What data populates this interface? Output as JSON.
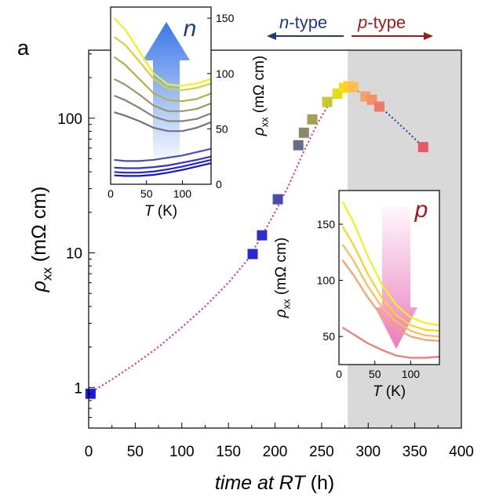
{
  "panel_label": "a",
  "type_labels": {
    "n_prefix": "n",
    "n_suffix": "-type",
    "p_prefix": "p",
    "p_suffix": "-type",
    "n_color": "#1f3d7a",
    "p_color": "#a01c1c"
  },
  "chart_data": [
    {
      "id": "main",
      "type": "scatter",
      "y_scale": "log",
      "xlabel_italic": "time at RT",
      "xlabel_unit": " (h)",
      "ylabel_symbol": "ρ",
      "ylabel_subscript": "xx",
      "ylabel_unit": " (mΩ cm)",
      "xlim": [
        0,
        400
      ],
      "ylim": [
        0.5,
        320
      ],
      "x_ticks": [
        0,
        50,
        100,
        150,
        200,
        250,
        300,
        350,
        400
      ],
      "y_ticks": [
        1,
        10,
        100
      ],
      "shaded_region": {
        "x_start": 278,
        "x_end": 400,
        "color": "#d9d9d9"
      },
      "points": [
        {
          "x": 2,
          "y": 0.9,
          "color": "#1a1adc"
        },
        {
          "x": 176,
          "y": 9.8,
          "color": "#2828d0"
        },
        {
          "x": 186,
          "y": 13.5,
          "color": "#3030c8"
        },
        {
          "x": 203,
          "y": 25,
          "color": "#4a4ab4"
        },
        {
          "x": 225,
          "y": 63,
          "color": "#6a6a8a"
        },
        {
          "x": 231,
          "y": 78,
          "color": "#8a8a6a"
        },
        {
          "x": 240,
          "y": 98,
          "color": "#a0a050"
        },
        {
          "x": 256,
          "y": 132,
          "color": "#c8c830"
        },
        {
          "x": 267,
          "y": 152,
          "color": "#e0e018"
        },
        {
          "x": 274,
          "y": 168,
          "color": "#f4e010"
        },
        {
          "x": 279,
          "y": 173,
          "color": "#ffd028"
        },
        {
          "x": 284,
          "y": 170,
          "color": "#fbbe52"
        },
        {
          "x": 297,
          "y": 145,
          "color": "#f5a066"
        },
        {
          "x": 304,
          "y": 137,
          "color": "#f49066"
        },
        {
          "x": 312,
          "y": 122,
          "color": "#ee7a6e"
        },
        {
          "x": 359,
          "y": 61,
          "color": "#e6586a"
        }
      ],
      "fit_n": {
        "color": "#e0208a",
        "x": [
          0,
          25,
          50,
          75,
          100,
          125,
          150,
          170,
          185,
          200,
          215,
          230,
          245,
          260,
          272
        ],
        "y": [
          0.9,
          1.15,
          1.5,
          2.0,
          2.8,
          4.0,
          6.0,
          8.8,
          13,
          20,
          32,
          55,
          90,
          135,
          165
        ]
      },
      "fit_p": {
        "color": "#1f3d99",
        "x": [
          285,
          300,
          315,
          330,
          345,
          359
        ],
        "y": [
          165,
          142,
          118,
          95,
          76,
          61
        ]
      }
    },
    {
      "id": "inset-n",
      "type": "line",
      "label": "n",
      "xlabel_italic": "T",
      "xlabel_unit": " (K)",
      "ylabel_symbol": "ρ",
      "ylabel_subscript": "xx",
      "ylabel_unit": " (mΩ cm)",
      "xlim": [
        0,
        140
      ],
      "ylim": [
        0,
        160
      ],
      "x_ticks": [
        0,
        50,
        100
      ],
      "y_ticks": [
        0,
        50,
        100,
        150
      ],
      "arrow_direction": "up",
      "arrow_color": "#3a78e8",
      "x": [
        5,
        20,
        40,
        60,
        80,
        100,
        120,
        140
      ],
      "series": [
        {
          "color": "#f0f020",
          "values": [
            150,
            140,
            120,
            100,
            90,
            89,
            91,
            95
          ]
        },
        {
          "color": "#d4d23a",
          "values": [
            133,
            126,
            111,
            95,
            86,
            85,
            87,
            91
          ]
        },
        {
          "color": "#b2b14c",
          "values": [
            115,
            108,
            95,
            82,
            76,
            75,
            77,
            82
          ]
        },
        {
          "color": "#98986a",
          "values": [
            95,
            90,
            81,
            71,
            66,
            66,
            68,
            73
          ]
        },
        {
          "color": "#838378",
          "values": [
            80,
            76,
            69,
            61,
            57,
            57,
            59,
            64
          ]
        },
        {
          "color": "#707088",
          "values": [
            65,
            62,
            57,
            51,
            48,
            48,
            51,
            56
          ]
        },
        {
          "color": "#5050a8",
          "values": [
            22,
            21,
            21,
            22,
            24,
            26,
            29,
            32
          ]
        },
        {
          "color": "#3434c4",
          "values": [
            15,
            14.5,
            14.5,
            15.5,
            17,
            19.5,
            22,
            25
          ]
        },
        {
          "color": "#2424d0",
          "values": [
            11,
            10.5,
            10.5,
            11.5,
            13.5,
            16,
            19,
            22
          ]
        },
        {
          "color": "#1414d8",
          "values": [
            8,
            7.5,
            7.5,
            8.5,
            10.5,
            13,
            16,
            19
          ]
        }
      ]
    },
    {
      "id": "inset-p",
      "type": "line",
      "label": "p",
      "xlabel_italic": "T",
      "xlabel_unit": " (K)",
      "ylabel_symbol": "ρ",
      "ylabel_subscript": "xx",
      "ylabel_unit": " (mΩ cm)",
      "xlim": [
        0,
        140
      ],
      "ylim": [
        25,
        180
      ],
      "x_ticks": [
        0,
        50,
        100
      ],
      "y_ticks": [
        50,
        100,
        150
      ],
      "arrow_direction": "down",
      "arrow_color": "#ec7cbc",
      "x": [
        5,
        20,
        40,
        60,
        80,
        100,
        120,
        140
      ],
      "series": [
        {
          "color": "#f2f21a",
          "values": [
            170,
            152,
            122,
            96,
            78,
            67,
            62,
            60
          ]
        },
        {
          "color": "#ffd21e",
          "values": [
            148,
            132,
            106,
            84,
            69,
            60,
            56,
            55
          ]
        },
        {
          "color": "#ffbc56",
          "values": [
            132,
            118,
            95,
            76,
            63,
            55,
            51,
            50
          ]
        },
        {
          "color": "#f9a06a",
          "values": [
            118,
            105,
            85,
            68,
            57,
            50,
            47,
            46
          ]
        },
        {
          "color": "#ee7a74",
          "values": [
            58,
            52,
            44,
            38,
            33,
            31,
            31,
            32
          ]
        }
      ]
    }
  ]
}
